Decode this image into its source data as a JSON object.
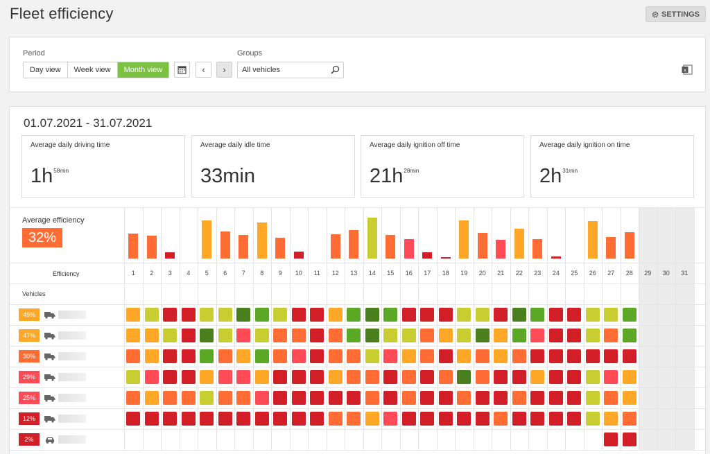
{
  "page": {
    "title": "Fleet efficiency",
    "settings_label": "SETTINGS"
  },
  "filters": {
    "period_label": "Period",
    "period_options": [
      "Day view",
      "Week view",
      "Month view"
    ],
    "active_period": "Month view",
    "groups_label": "Groups",
    "groups_value": "All vehicles"
  },
  "summary": {
    "date_range": "01.07.2021 - 31.07.2021",
    "metrics": [
      {
        "label": "Average daily driving time",
        "main": "1h",
        "sup": "58min"
      },
      {
        "label": "Average daily idle time",
        "main": "33min",
        "sup": ""
      },
      {
        "label": "Average daily ignition off time",
        "main": "21h",
        "sup": "28min"
      },
      {
        "label": "Average daily ignition on time",
        "main": "2h",
        "sup": "31min"
      }
    ]
  },
  "efficiency": {
    "label": "Average efficiency",
    "value": "32%",
    "row_label": "Efficiency",
    "vehicles_label": "Vehicles",
    "days": [
      1,
      2,
      3,
      4,
      5,
      6,
      7,
      8,
      9,
      10,
      11,
      12,
      13,
      14,
      15,
      16,
      17,
      18,
      19,
      20,
      21,
      22,
      23,
      24,
      25,
      26,
      27,
      28,
      29,
      30,
      31
    ],
    "days_with_data": 28
  },
  "colors": {
    "accent": "#7cc242",
    "darkgreen": "#4a7f1e",
    "green": "#5aa825",
    "lime": "#c8cd32",
    "amber": "#ffa726",
    "orange": "#ff6d35",
    "coral": "#ff4b55",
    "red": "#d21f27",
    "future": "#ececec"
  },
  "chart_data": {
    "type": "bar",
    "categories": [
      "1",
      "2",
      "3",
      "4",
      "5",
      "6",
      "7",
      "8",
      "9",
      "10",
      "11",
      "12",
      "13",
      "14",
      "15",
      "16",
      "17",
      "18",
      "19",
      "20",
      "21",
      "22",
      "23",
      "24",
      "25",
      "26",
      "27",
      "28"
    ],
    "values": [
      38,
      35,
      10,
      0,
      58,
      41,
      36,
      55,
      32,
      11,
      0,
      37,
      43,
      62,
      36,
      29,
      9,
      2,
      58,
      39,
      28,
      45,
      30,
      3,
      0,
      57,
      33,
      40
    ],
    "bar_colors": [
      "orange",
      "orange",
      "red",
      "none",
      "amber",
      "orange",
      "orange",
      "amber",
      "orange",
      "red",
      "none",
      "orange",
      "orange",
      "lime",
      "orange",
      "coral",
      "red",
      "red",
      "amber",
      "orange",
      "coral",
      "amber",
      "orange",
      "red",
      "none",
      "amber",
      "orange",
      "orange"
    ]
  },
  "vehicles": [
    {
      "pct": "49%",
      "badge": "amber",
      "icon": "truck-icon",
      "cells": [
        "amber",
        "lime",
        "red",
        "red",
        "lime",
        "lime",
        "darkgreen",
        "green",
        "lime",
        "red",
        "red",
        "amber",
        "green",
        "darkgreen",
        "green",
        "red",
        "red",
        "red",
        "lime",
        "lime",
        "red",
        "darkgreen",
        "green",
        "red",
        "red",
        "lime",
        "lime",
        "green"
      ]
    },
    {
      "pct": "47%",
      "badge": "amber",
      "icon": "truck-icon",
      "cells": [
        "amber",
        "amber",
        "lime",
        "red",
        "darkgreen",
        "lime",
        "coral",
        "lime",
        "orange",
        "orange",
        "red",
        "orange",
        "green",
        "darkgreen",
        "lime",
        "lime",
        "orange",
        "amber",
        "lime",
        "darkgreen",
        "amber",
        "green",
        "coral",
        "red",
        "red",
        "lime",
        "orange",
        "green"
      ]
    },
    {
      "pct": "30%",
      "badge": "orange",
      "icon": "truck-icon",
      "cells": [
        "orange",
        "amber",
        "red",
        "red",
        "green",
        "orange",
        "amber",
        "green",
        "orange",
        "coral",
        "red",
        "orange",
        "orange",
        "lime",
        "coral",
        "amber",
        "orange",
        "red",
        "amber",
        "orange",
        "amber",
        "orange",
        "red",
        "red",
        "red",
        "red",
        "red",
        "red"
      ]
    },
    {
      "pct": "29%",
      "badge": "coral",
      "icon": "truck-icon",
      "cells": [
        "lime",
        "coral",
        "red",
        "red",
        "amber",
        "coral",
        "coral",
        "amber",
        "red",
        "red",
        "red",
        "amber",
        "orange",
        "orange",
        "red",
        "orange",
        "red",
        "orange",
        "darkgreen",
        "orange",
        "red",
        "red",
        "amber",
        "red",
        "red",
        "lime",
        "coral",
        "amber"
      ]
    },
    {
      "pct": "25%",
      "badge": "coral",
      "icon": "truck-icon",
      "cells": [
        "orange",
        "amber",
        "orange",
        "orange",
        "lime",
        "orange",
        "orange",
        "coral",
        "red",
        "red",
        "red",
        "red",
        "red",
        "orange",
        "red",
        "orange",
        "red",
        "red",
        "orange",
        "red",
        "red",
        "orange",
        "red",
        "red",
        "red",
        "lime",
        "orange",
        "amber"
      ]
    },
    {
      "pct": "12%",
      "badge": "red",
      "icon": "truck-icon",
      "cells": [
        "red",
        "red",
        "red",
        "red",
        "red",
        "red",
        "red",
        "red",
        "red",
        "red",
        "red",
        "orange",
        "orange",
        "amber",
        "coral",
        "red",
        "red",
        "red",
        "red",
        "red",
        "orange",
        "red",
        "red",
        "red",
        "red",
        "lime",
        "amber",
        "orange"
      ]
    },
    {
      "pct": "2%",
      "badge": "red",
      "icon": "car-icon",
      "cells": [
        "none",
        "none",
        "none",
        "none",
        "none",
        "none",
        "none",
        "none",
        "none",
        "none",
        "none",
        "none",
        "none",
        "none",
        "none",
        "none",
        "none",
        "none",
        "none",
        "none",
        "none",
        "none",
        "none",
        "none",
        "none",
        "none",
        "red",
        "red"
      ]
    }
  ]
}
